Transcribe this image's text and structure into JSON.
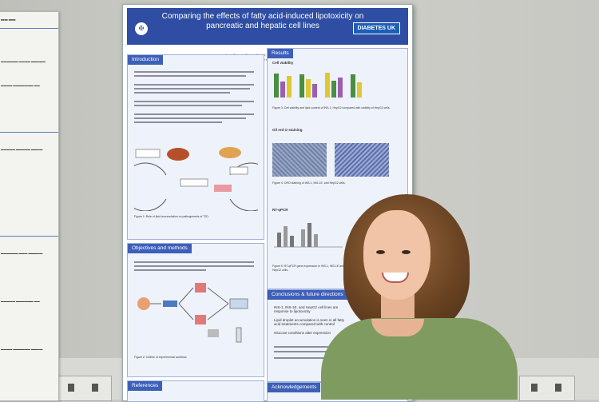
{
  "poster": {
    "title": "Comparing the effects of fatty acid-induced lipotoxicity on pancreatic and hepatic cell lines",
    "logo_text": "DIABETES UK",
    "authors": "Anna Pearce, Shawn Carder, Brian Finch, Ahmed El-Mehdi",
    "affiliation": "Centre for Cardiovascular Science, Institute for Neuroscience & Cardiovascular Research",
    "sections": {
      "introduction": "Introduction",
      "results": "Results",
      "objectives": "Objectives and methods",
      "conclusions": "Conclusions & future directions",
      "references": "References",
      "acknowledgements": "Acknowledgements"
    },
    "results_labels": {
      "cell_viability": "Cell viability",
      "oil_red_o": "Oil red O staining",
      "rt_qpcr": "RT-qPCR"
    },
    "figure_captions": {
      "fig1": "Figure 1: Role of lipid accumulation on pathogenesis of T2D.",
      "fig2": "Figure 2: Outline of experimental workflow.",
      "fig3": "Figure 3: Cell viability and lipid content of INS-1, HepG2 compared with viability of HepG2 cells.",
      "fig4": "Figure 4: ORO staining of INS-1, INS-1E, and HepG2 cells.",
      "fig5": "Figure 5: RT-qPCR gene expression in INS-1, INS-1E and HepG2 cells."
    },
    "conclusion_points": [
      "INS-1, INS-1E, and HepG2 cell lines are response to lipotoxicity",
      "Lipid droplet accumulation is seen in all fatty acid treatments compared with control",
      "Glucose conditions alter expression"
    ]
  },
  "colors": {
    "poster_header": "#2e4da3",
    "section_header": "#3d5fb8",
    "shirt": "#7f9b60",
    "hair": "#6b4423"
  }
}
